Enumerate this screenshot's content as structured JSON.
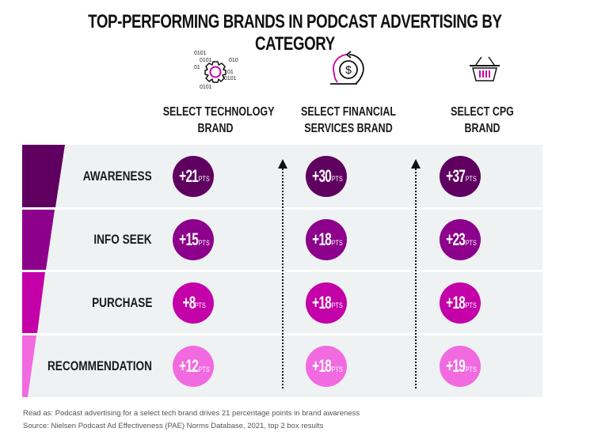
{
  "title": "TOP-PERFORMING BRANDS IN PODCAST ADVERTISING BY CATEGORY",
  "columns": [
    {
      "label_line1": "SELECT TECHNOLOGY",
      "label_line2": "BRAND",
      "icon": "gear-binary-icon"
    },
    {
      "label_line1": "SELECT FINANCIAL",
      "label_line2": "SERVICES BRAND",
      "icon": "dollar-cycle-icon"
    },
    {
      "label_line1": "SELECT CPG",
      "label_line2": "BRAND",
      "icon": "shopping-basket-icon"
    }
  ],
  "icon_text": {
    "binary_a": "0101",
    "binary_b": "010",
    "binary_c": "01"
  },
  "unit": "PTS",
  "rows": [
    {
      "label": "AWARENESS",
      "color": "#5f0061",
      "values": [
        "+21",
        "+30",
        "+37"
      ]
    },
    {
      "label": "INFO SEEK",
      "color": "#8c008c",
      "values": [
        "+15",
        "+18",
        "+23"
      ]
    },
    {
      "label": "PURCHASE",
      "color": "#c400a8",
      "values": [
        "+8",
        "+18",
        "+18"
      ]
    },
    {
      "label": "RECOMMENDATION",
      "color": "#f26ae0",
      "values": [
        "+12",
        "+18",
        "+19"
      ]
    }
  ],
  "chart_data": {
    "type": "table",
    "title": "TOP-PERFORMING BRANDS IN PODCAST ADVERTISING BY CATEGORY",
    "categories": [
      "AWARENESS",
      "INFO SEEK",
      "PURCHASE",
      "RECOMMENDATION"
    ],
    "unit": "percentage points",
    "series": [
      {
        "name": "SELECT TECHNOLOGY BRAND",
        "values": [
          21,
          15,
          8,
          12
        ]
      },
      {
        "name": "SELECT FINANCIAL SERVICES BRAND",
        "values": [
          30,
          18,
          18,
          18
        ]
      },
      {
        "name": "SELECT CPG BRAND",
        "values": [
          37,
          23,
          18,
          19
        ]
      }
    ]
  },
  "footnotes": {
    "read_as": "Read as: Podcast advertising for a select tech brand drives 21 percentage points in brand awareness",
    "source": "Source: Nielsen Podcast Ad Effectiveness (PAE) Norms Database, 2021, top 2 box results"
  }
}
